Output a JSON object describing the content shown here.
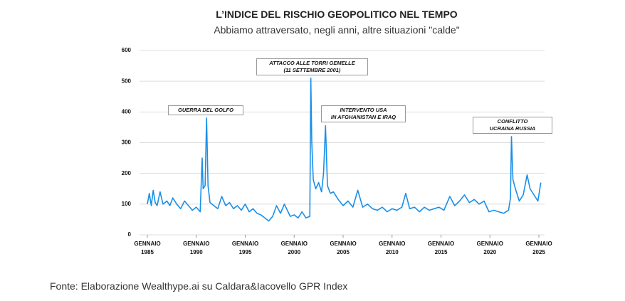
{
  "chart_data": {
    "type": "line",
    "title": "L’INDICE DEL RISCHIO GEOPOLITICO NEL TEMPO",
    "subtitle": "Abbiamo attraversato, negli anni, altre situazioni \"calde\"",
    "source": "Fonte: Elaborazione Wealthype.ai su Caldara&Iacovello GPR Index",
    "x": [
      1985,
      1985.2,
      1985.4,
      1985.6,
      1985.8,
      1986,
      1986.3,
      1986.6,
      1987,
      1987.3,
      1987.6,
      1988,
      1988.4,
      1988.8,
      1989.2,
      1989.6,
      1990,
      1990.4,
      1990.6,
      1990.7,
      1990.9,
      1991.05,
      1991.2,
      1991.4,
      1991.8,
      1992.2,
      1992.6,
      1993,
      1993.4,
      1993.8,
      1994.2,
      1994.6,
      1995,
      1995.4,
      1995.8,
      1996.2,
      1996.6,
      1997,
      1997.4,
      1997.8,
      1998.2,
      1998.6,
      1999,
      1999.3,
      1999.6,
      2000,
      2000.4,
      2000.8,
      2001.2,
      2001.6,
      2001.7,
      2001.8,
      2001.95,
      2002.2,
      2002.5,
      2002.8,
      2003.0,
      2003.2,
      2003.4,
      2003.7,
      2004,
      2004.5,
      2005,
      2005.5,
      2006,
      2006.5,
      2007,
      2007.5,
      2008,
      2008.5,
      2009,
      2009.5,
      2010,
      2010.5,
      2011,
      2011.4,
      2011.8,
      2012.3,
      2012.8,
      2013.3,
      2013.8,
      2014.3,
      2014.8,
      2015.3,
      2015.9,
      2016.4,
      2016.9,
      2017.4,
      2017.9,
      2018.4,
      2018.9,
      2019.4,
      2019.9,
      2020.4,
      2020.9,
      2021.4,
      2021.9,
      2022.1,
      2022.2,
      2022.35,
      2022.6,
      2023,
      2023.4,
      2023.8,
      2024.1,
      2024.5,
      2024.9,
      2025.1,
      2025.2
    ],
    "series": [
      {
        "color": "#1a8fe8",
        "values": [
          100,
          135,
          95,
          145,
          105,
          95,
          140,
          100,
          110,
          95,
          120,
          100,
          85,
          110,
          95,
          80,
          90,
          75,
          250,
          150,
          160,
          380,
          160,
          105,
          95,
          85,
          125,
          95,
          105,
          85,
          95,
          80,
          100,
          75,
          85,
          70,
          65,
          55,
          45,
          60,
          95,
          70,
          100,
          80,
          60,
          65,
          55,
          75,
          55,
          60,
          510,
          300,
          180,
          150,
          170,
          140,
          200,
          355,
          160,
          135,
          140,
          115,
          95,
          110,
          90,
          145,
          90,
          100,
          85,
          80,
          90,
          75,
          85,
          80,
          90,
          135,
          85,
          90,
          75,
          90,
          80,
          85,
          90,
          80,
          125,
          95,
          110,
          130,
          105,
          115,
          100,
          110,
          75,
          80,
          75,
          70,
          80,
          120,
          320,
          180,
          150,
          110,
          130,
          195,
          150,
          130,
          110,
          150,
          170
        ]
      }
    ],
    "xlim": [
      1984.6,
      2025.4
    ],
    "xticks": [
      {
        "value": 1985,
        "label": "GENNAIO 1985"
      },
      {
        "value": 1990,
        "label": "GENNAIO 1990"
      },
      {
        "value": 1995,
        "label": "GENNAIO 1995"
      },
      {
        "value": 2000,
        "label": "GENNAIO 2000"
      },
      {
        "value": 2005,
        "label": "GENNAIO 2005"
      },
      {
        "value": 2010,
        "label": "GENNAIO 2010"
      },
      {
        "value": 2015,
        "label": "GENNAIO 2015"
      },
      {
        "value": 2020,
        "label": "GENNAIO 2020"
      },
      {
        "value": 2025,
        "label": "GENNAIO 2025"
      }
    ],
    "ylim": [
      0,
      600
    ],
    "yticks": [
      0,
      100,
      200,
      300,
      400,
      500,
      600
    ],
    "grid": true,
    "annotations": [
      {
        "lines": [
          "GUERRA DEL GOLFO"
        ]
      },
      {
        "lines": [
          "ATTACCO ALLE TORRI GEMELLE",
          "(11 SETTEMBRE 2001)"
        ]
      },
      {
        "lines": [
          "INTERVENTO USA",
          "IN AFGHANISTAN E IRAQ"
        ]
      },
      {
        "lines": [
          "CONFLITTO",
          "UCRAINA RUSSIA"
        ]
      }
    ]
  }
}
